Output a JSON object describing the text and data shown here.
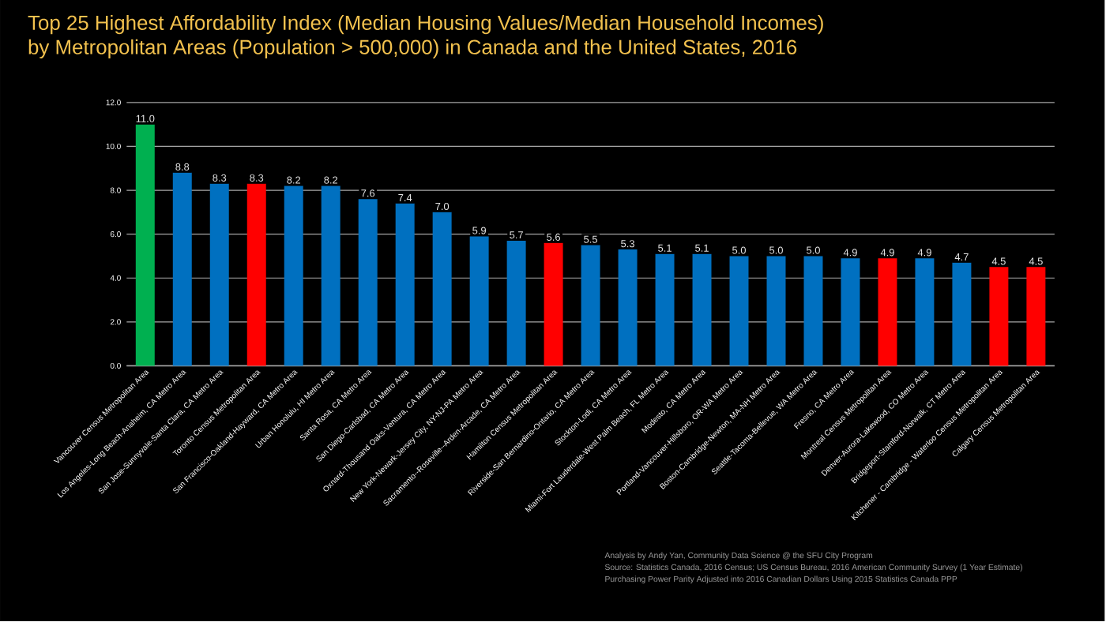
{
  "chart_data": {
    "type": "bar",
    "title": "Top 25 Highest Affordability Index (Median Housing Values/Median Household Incomes)\nby Metropolitan Areas (Population > 500,000) in Canada and the United States, 2016",
    "categories": [
      "Vancouver Census Metropolitan Area",
      "Los Angeles-Long Beach-Anaheim, CA Metro Area",
      "San Jose-Sunnyvale-Santa Clara, CA Metro Area",
      "Toronto Census Metropolitan Area",
      "San Francisco-Oakland-Hayward, CA Metro Area",
      "Urban Honolulu, HI Metro Area",
      "Santa Rosa, CA Metro Area",
      "San Diego-Carlsbad, CA Metro Area",
      "Oxnard-Thousand Oaks-Ventura, CA Metro Area",
      "New York-Newark-Jersey City, NY-NJ-PA Metro Area",
      "Sacramento--Roseville--Arden-Arcade, CA Metro Area",
      "Hamilton Census Metropolitan Area",
      "Riverside-San Bernardino-Ontario, CA Metro Area",
      "Stockton-Lodi, CA Metro Area",
      "Miami-Fort Lauderdale-West Palm Beach, FL Metro Area",
      "Modesto, CA Metro Area",
      "Portland-Vancouver-Hillsboro, OR-WA Metro Area",
      "Boston-Cambridge-Newton, MA-NH Metro Area",
      "Seattle-Tacoma-Bellevue, WA Metro Area",
      "Fresno, CA Metro Area",
      "Montreal Census Metropolitan Area",
      "Denver-Aurora-Lakewood, CO Metro Area",
      "Bridgeport-Stamford-Norwalk, CT Metro Area",
      "Kitchener - Cambridge - Waterloo Census Metropolitan Area",
      "Calgary Census Metropolitan Area"
    ],
    "values": [
      11.0,
      8.8,
      8.3,
      8.3,
      8.2,
      8.2,
      7.6,
      7.4,
      7.0,
      5.9,
      5.7,
      5.6,
      5.5,
      5.3,
      5.1,
      5.1,
      5.0,
      5.0,
      5.0,
      4.9,
      4.9,
      4.9,
      4.7,
      4.5,
      4.5
    ],
    "colors": [
      "#00b050",
      "#0070c0",
      "#0070c0",
      "#ff0000",
      "#0070c0",
      "#0070c0",
      "#0070c0",
      "#0070c0",
      "#0070c0",
      "#0070c0",
      "#0070c0",
      "#ff0000",
      "#0070c0",
      "#0070c0",
      "#0070c0",
      "#0070c0",
      "#0070c0",
      "#0070c0",
      "#0070c0",
      "#0070c0",
      "#ff0000",
      "#0070c0",
      "#0070c0",
      "#ff0000",
      "#ff0000"
    ],
    "ylim": [
      0,
      12
    ],
    "yticks": [
      {
        "value": 0,
        "label": "0.0"
      },
      {
        "value": 2,
        "label": "2.0"
      },
      {
        "value": 4,
        "label": "4.0"
      },
      {
        "value": 6,
        "label": "6.0"
      },
      {
        "value": 8,
        "label": "8.0"
      },
      {
        "value": 10,
        "label": "10.0"
      },
      {
        "value": 12,
        "label": "12.0"
      }
    ],
    "grid": "y",
    "value_labels": [
      "11.0",
      "8.8",
      "8.3",
      "8.3",
      "8.2",
      "8.2",
      "7.6",
      "7.4",
      "7.0",
      "5.9",
      "5.7",
      "5.6",
      "5.5",
      "5.3",
      "5.1",
      "5.1",
      "5.0",
      "5.0",
      "5.0",
      "4.9",
      "4.9",
      "4.9",
      "4.7",
      "4.5",
      "4.5"
    ],
    "annotations": [
      "Analysis by Andy Yan, Community Data Science @ the SFU City Program",
      "Source: Statistics Canada, 2016 Census; US Census Bureau, 2016 American Community Survey (1 Year Estimate)",
      "Purchasing Power Parity Adjusted into 2016 Canadian Dollars Using 2015 Statistics Canada PPP"
    ]
  }
}
